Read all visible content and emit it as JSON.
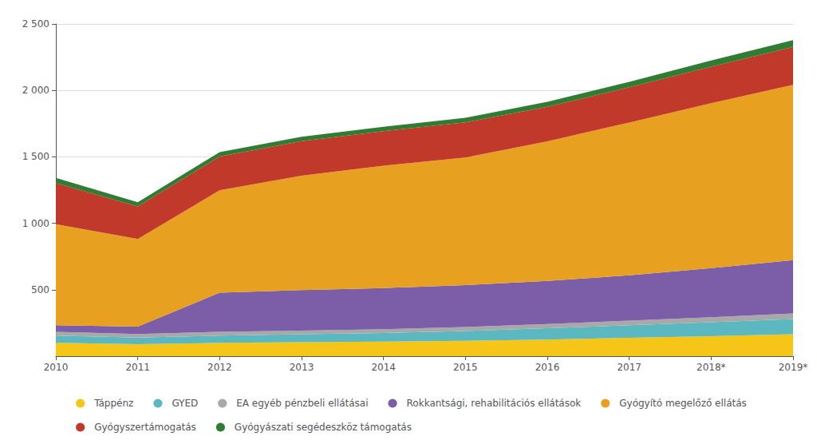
{
  "chart_data": {
    "type": "area",
    "stacked": true,
    "categories": [
      "2010",
      "2011",
      "2012",
      "2013",
      "2014",
      "2015",
      "2016",
      "2017",
      "2018*",
      "2019*"
    ],
    "series": [
      {
        "name": "Táppénz",
        "color": "#F5C518",
        "values": [
          100,
          90,
          100,
          105,
          110,
          115,
          125,
          138,
          150,
          165
        ]
      },
      {
        "name": "GYED",
        "color": "#5BB8C1",
        "values": [
          55,
          50,
          55,
          60,
          65,
          75,
          85,
          95,
          105,
          115
        ]
      },
      {
        "name": "EA egyéb pénzbeli ellátásai",
        "color": "#A8A8A8",
        "values": [
          28,
          27,
          28,
          28,
          28,
          30,
          32,
          35,
          38,
          42
        ]
      },
      {
        "name": "Rokkantsági, rehabilitációs ellátások",
        "color": "#7B5EA7",
        "values": [
          50,
          55,
          295,
          305,
          310,
          315,
          325,
          340,
          370,
          400
        ]
      },
      {
        "name": "Gyógyító megelőző ellátás",
        "color": "#E8A020",
        "values": [
          760,
          660,
          770,
          860,
          920,
          960,
          1050,
          1150,
          1240,
          1320
        ]
      },
      {
        "name": "Gyógyszertámogatás",
        "color": "#C0392B",
        "values": [
          310,
          245,
          255,
          260,
          260,
          265,
          260,
          265,
          275,
          285
        ]
      },
      {
        "name": "Gyógyászati segédeszköz támogatás",
        "color": "#2E7D32",
        "values": [
          38,
          32,
          33,
          33,
          33,
          34,
          37,
          42,
          47,
          52
        ]
      }
    ],
    "ylim": [
      0,
      2500
    ],
    "yticks": [
      500,
      {
        "value": 1000,
        "label": "1 000"
      },
      {
        "value": 1500,
        "label": "1 500"
      },
      {
        "value": 2000,
        "label": "2 000"
      },
      {
        "value": 2500,
        "label": "2 500"
      }
    ],
    "grid": true,
    "legend": "bottom"
  }
}
